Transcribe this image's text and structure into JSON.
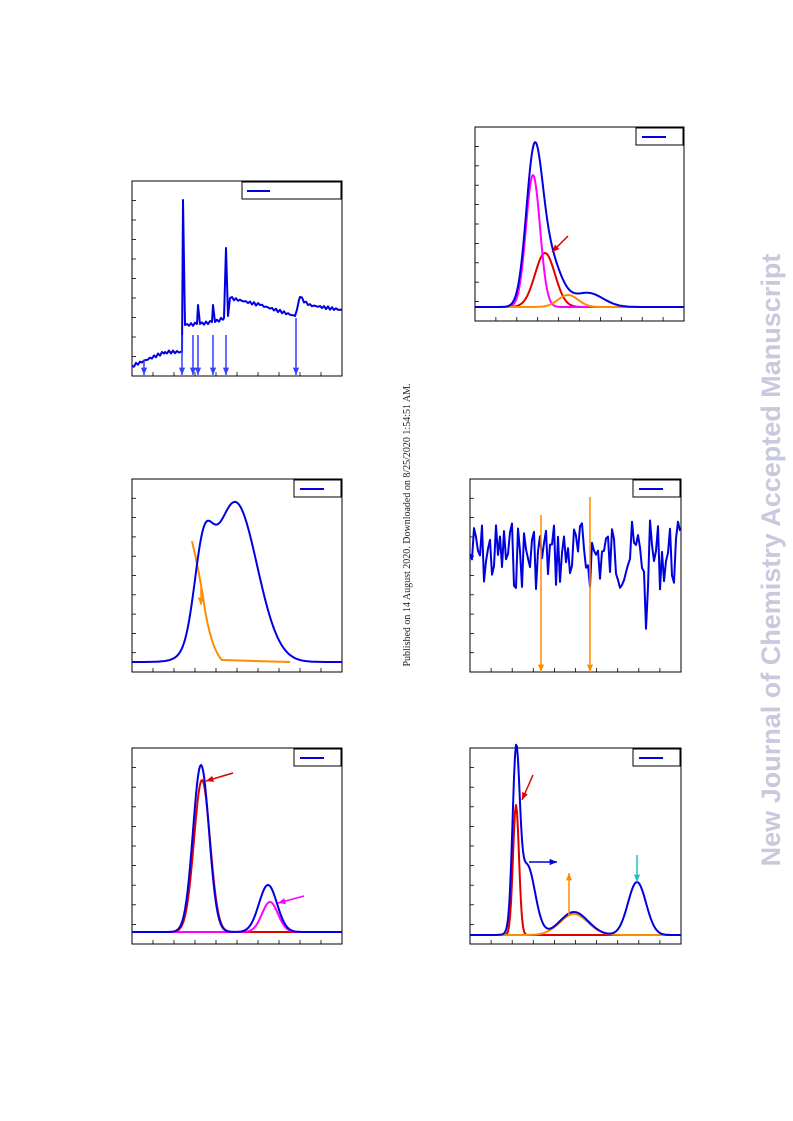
{
  "side_note": "Published on 14 August 2020. Downloaded on 8/25/2020 1:54:51 AM.",
  "watermark": "New Journal of Chemistry Accepted Manuscript"
}
